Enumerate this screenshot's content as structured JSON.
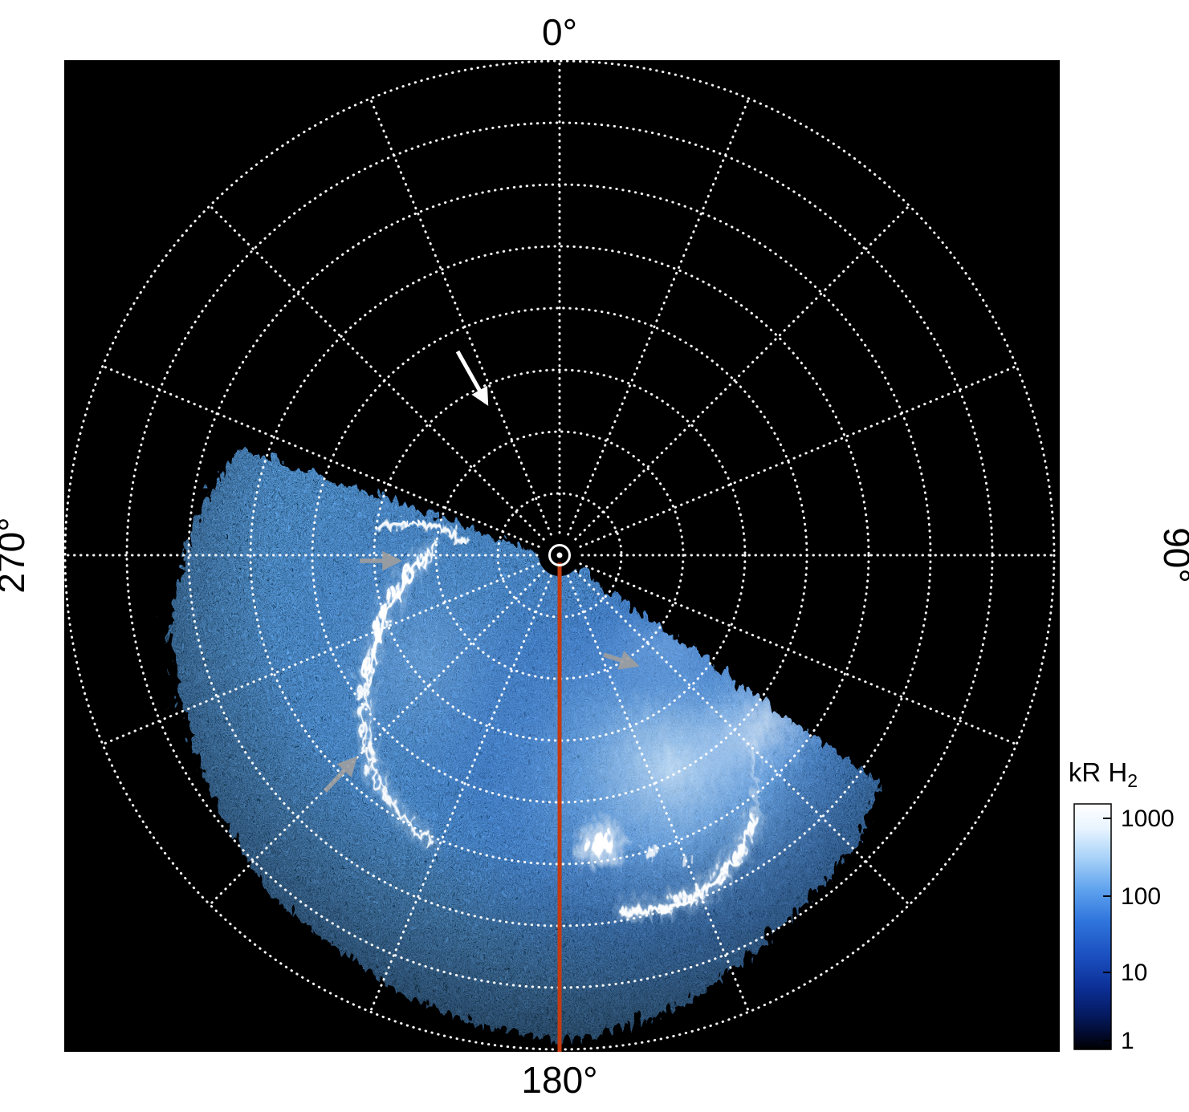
{
  "figure": {
    "background": "#ffffff",
    "plot_bg": "#000000",
    "angle_labels": {
      "top": "0°",
      "right": "90°",
      "bottom": "180°",
      "left": "270°"
    },
    "colorbar": {
      "title_main": "kR H",
      "title_sub": "2",
      "ticks": [
        "1000",
        "100",
        "10",
        "1"
      ]
    }
  },
  "chart_data": {
    "type": "heatmap",
    "projection": "polar",
    "title": "",
    "angular_tick_labels": [
      "0°",
      "90°",
      "180°",
      "270°"
    ],
    "grid": {
      "rings": 8,
      "spoke_step_deg": 22.5,
      "style": "dotted",
      "color": "#ffffff"
    },
    "colorbar": {
      "label": "kR H2",
      "scale": "log",
      "tick_values": [
        1000,
        100,
        10,
        1
      ],
      "range": [
        1,
        1000
      ],
      "colors_top_to_bottom": [
        "#ffffff",
        "#a8d2f8",
        "#2f74dc",
        "#0c2f96",
        "#000000"
      ]
    },
    "data_coverage": {
      "azimuth_start_deg": 124,
      "azimuth_end_deg": 292,
      "note": "auroral H2 emission fills the lower-left sector between roughly 124° and 292°; the rest of the polar map is black (no data)"
    },
    "meridian_line": {
      "azimuth_deg": 180,
      "color": "#c43b10"
    },
    "features": [
      {
        "name": "main-auroral-arc",
        "desc": "bright narrow white arc on the left side at mid radius"
      },
      {
        "name": "bright-spot",
        "desc": "compact bright emission patch below the pole"
      },
      {
        "name": "secondary-arc",
        "desc": "bright white arc segment lower-right of the pole"
      }
    ],
    "annotations": [
      {
        "type": "arrow",
        "color": "#ffffff",
        "points_to": "region upper-left of pole"
      },
      {
        "type": "arrow",
        "color": "#9f9f9f",
        "points_to": "arc near pole, left of center"
      },
      {
        "type": "arrow",
        "color": "#9f9f9f",
        "points_to": "data edge right of pole"
      },
      {
        "type": "arrow",
        "color": "#9f9f9f",
        "points_to": "main arc lower-left"
      }
    ]
  }
}
